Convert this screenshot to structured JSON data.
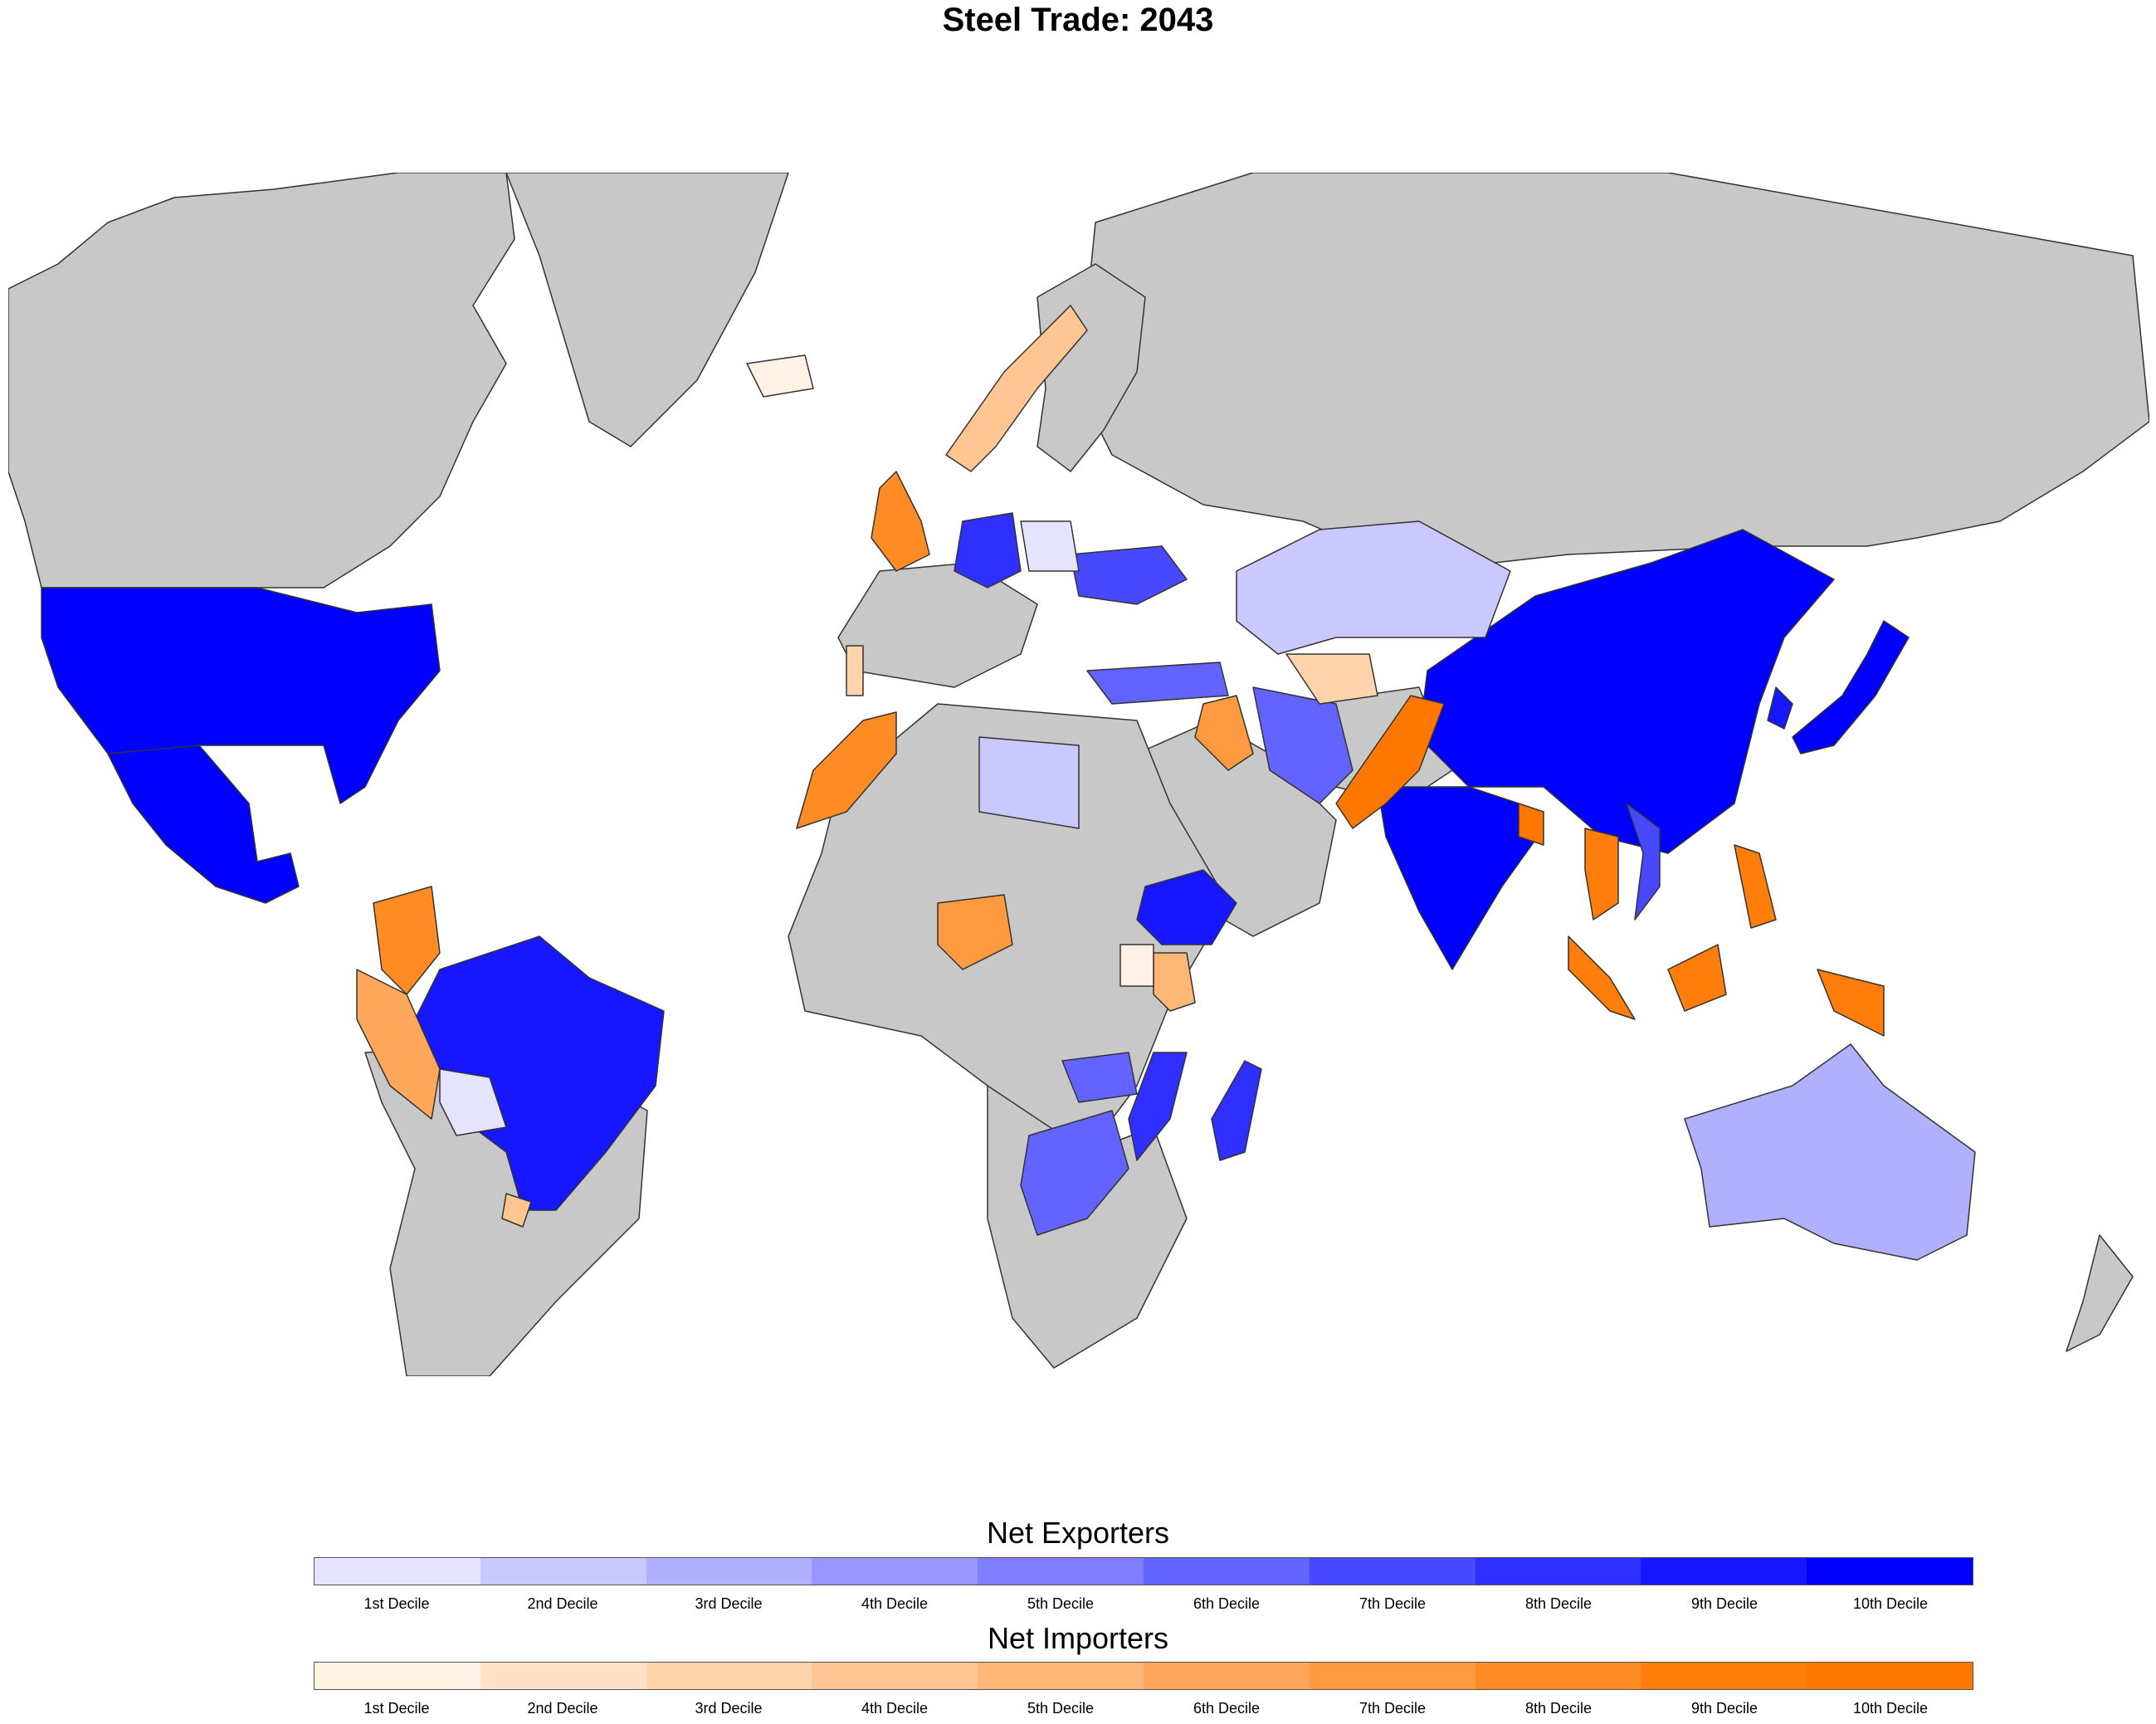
{
  "title": "Steel Trade: 2043",
  "legend": {
    "exporters": {
      "title": "Net Exporters",
      "deciles": [
        "1st Decile",
        "2nd Decile",
        "3rd Decile",
        "4th Decile",
        "5th Decile",
        "6th Decile",
        "7th Decile",
        "8th Decile",
        "9th Decile",
        "10th Decile"
      ],
      "colors": [
        "#e4e4ff",
        "#c9c9ff",
        "#b0b0ff",
        "#9797ff",
        "#7e7eff",
        "#6363ff",
        "#4848ff",
        "#2f2fff",
        "#1616ff",
        "#0000ff"
      ]
    },
    "importers": {
      "title": "Net Importers",
      "deciles": [
        "1st Decile",
        "2nd Decile",
        "3rd Decile",
        "4th Decile",
        "5th Decile",
        "6th Decile",
        "7th Decile",
        "8th Decile",
        "9th Decile",
        "10th Decile"
      ],
      "colors": [
        "#fff1e4",
        "#ffe2c8",
        "#ffd4ad",
        "#ffc592",
        "#ffb777",
        "#ffa85b",
        "#ff9a40",
        "#ff8b25",
        "#ff7d0a",
        "#ff7600"
      ]
    }
  },
  "colors": {
    "no_data": "#c8c8c8",
    "background": "#ffffff"
  },
  "regions": [
    {
      "name": "United States",
      "class": "exporter",
      "decile": 10
    },
    {
      "name": "Mexico",
      "class": "exporter",
      "decile": 10
    },
    {
      "name": "Brazil",
      "class": "exporter",
      "decile": 9
    },
    {
      "name": "China",
      "class": "exporter",
      "decile": 10
    },
    {
      "name": "India",
      "class": "exporter",
      "decile": 10
    },
    {
      "name": "Japan",
      "class": "exporter",
      "decile": 10
    },
    {
      "name": "South Korea",
      "class": "exporter",
      "decile": 9
    },
    {
      "name": "Ethiopia",
      "class": "exporter",
      "decile": 9
    },
    {
      "name": "Madagascar",
      "class": "exporter",
      "decile": 8
    },
    {
      "name": "Germany",
      "class": "exporter",
      "decile": 8
    },
    {
      "name": "Ukraine",
      "class": "exporter",
      "decile": 7
    },
    {
      "name": "Mozambique",
      "class": "exporter",
      "decile": 8
    },
    {
      "name": "Vietnam",
      "class": "exporter",
      "decile": 7
    },
    {
      "name": "South Africa",
      "class": "exporter",
      "decile": 6
    },
    {
      "name": "Turkey",
      "class": "exporter",
      "decile": 6
    },
    {
      "name": "Iran",
      "class": "exporter",
      "decile": 6
    },
    {
      "name": "Zambia",
      "class": "exporter",
      "decile": 6
    },
    {
      "name": "Australia",
      "class": "exporter",
      "decile": 3
    },
    {
      "name": "Kazakhstan",
      "class": "exporter",
      "decile": 2
    },
    {
      "name": "Libya",
      "class": "exporter",
      "decile": 2
    },
    {
      "name": "Poland",
      "class": "exporter",
      "decile": 1
    },
    {
      "name": "Bolivia",
      "class": "exporter",
      "decile": 1
    },
    {
      "name": "Pakistan",
      "class": "importer",
      "decile": 10
    },
    {
      "name": "Bangladesh",
      "class": "importer",
      "decile": 10
    },
    {
      "name": "Indonesia",
      "class": "importer",
      "decile": 9
    },
    {
      "name": "Philippines",
      "class": "importer",
      "decile": 9
    },
    {
      "name": "Thailand",
      "class": "importer",
      "decile": 9
    },
    {
      "name": "Malaysia",
      "class": "importer",
      "decile": 9
    },
    {
      "name": "Colombia",
      "class": "importer",
      "decile": 8
    },
    {
      "name": "Morocco",
      "class": "importer",
      "decile": 8
    },
    {
      "name": "United Kingdom",
      "class": "importer",
      "decile": 8
    },
    {
      "name": "Iraq",
      "class": "importer",
      "decile": 7
    },
    {
      "name": "Nigeria",
      "class": "importer",
      "decile": 7
    },
    {
      "name": "Peru",
      "class": "importer",
      "decile": 6
    },
    {
      "name": "Kenya",
      "class": "importer",
      "decile": 5
    },
    {
      "name": "Norway",
      "class": "importer",
      "decile": 4
    },
    {
      "name": "Uruguay",
      "class": "importer",
      "decile": 4
    },
    {
      "name": "Turkmenistan",
      "class": "importer",
      "decile": 3
    },
    {
      "name": "Portugal",
      "class": "importer",
      "decile": 3
    },
    {
      "name": "Iceland",
      "class": "importer",
      "decile": 1
    },
    {
      "name": "South Sudan",
      "class": "importer",
      "decile": 1
    }
  ]
}
